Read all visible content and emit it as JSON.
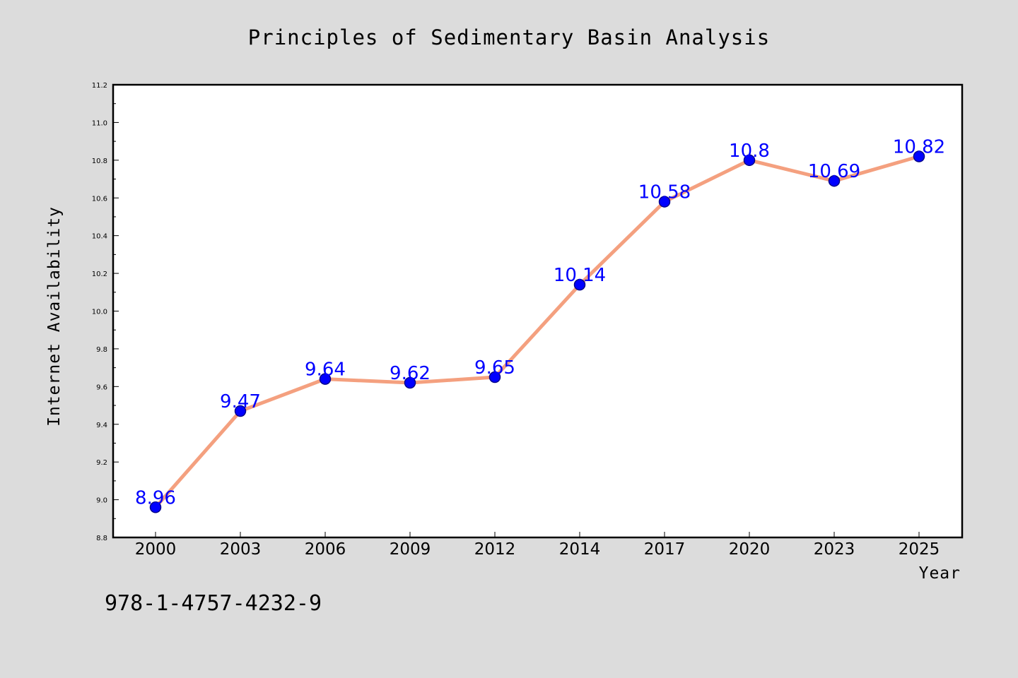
{
  "chart_data": {
    "type": "line",
    "title": "Principles of Sedimentary Basin Analysis",
    "xlabel": "Year",
    "ylabel": "Internet Availability",
    "categories": [
      "2000",
      "2003",
      "2006",
      "2009",
      "2012",
      "2014",
      "2017",
      "2020",
      "2023",
      "2025"
    ],
    "series": [
      {
        "values": [
          8.96,
          9.47,
          9.64,
          9.62,
          9.65,
          10.14,
          10.58,
          10.8,
          10.69,
          10.82
        ],
        "data_labels": [
          "8.96",
          "9.47",
          "9.64",
          "9.62",
          "9.65",
          "10.14",
          "10.58",
          "10.8",
          "10.69",
          "10.82"
        ]
      }
    ],
    "ylim": [
      8.8,
      11.2
    ],
    "yticks": [
      "8.8",
      "9.0",
      "9.2",
      "9.4",
      "9.6",
      "9.8",
      "10.0",
      "10.2",
      "10.4",
      "10.6",
      "10.8",
      "11.0",
      "11.2"
    ],
    "grid": false,
    "legend": "none"
  },
  "footnote": "978-1-4757-4232-9",
  "colors": {
    "background": "#dcdcdc",
    "plot_background": "#ffffff",
    "line": "#f4a07f",
    "marker_fill": "#0000ff",
    "marker_edge": "#00008b",
    "data_label": "#0000ff"
  }
}
